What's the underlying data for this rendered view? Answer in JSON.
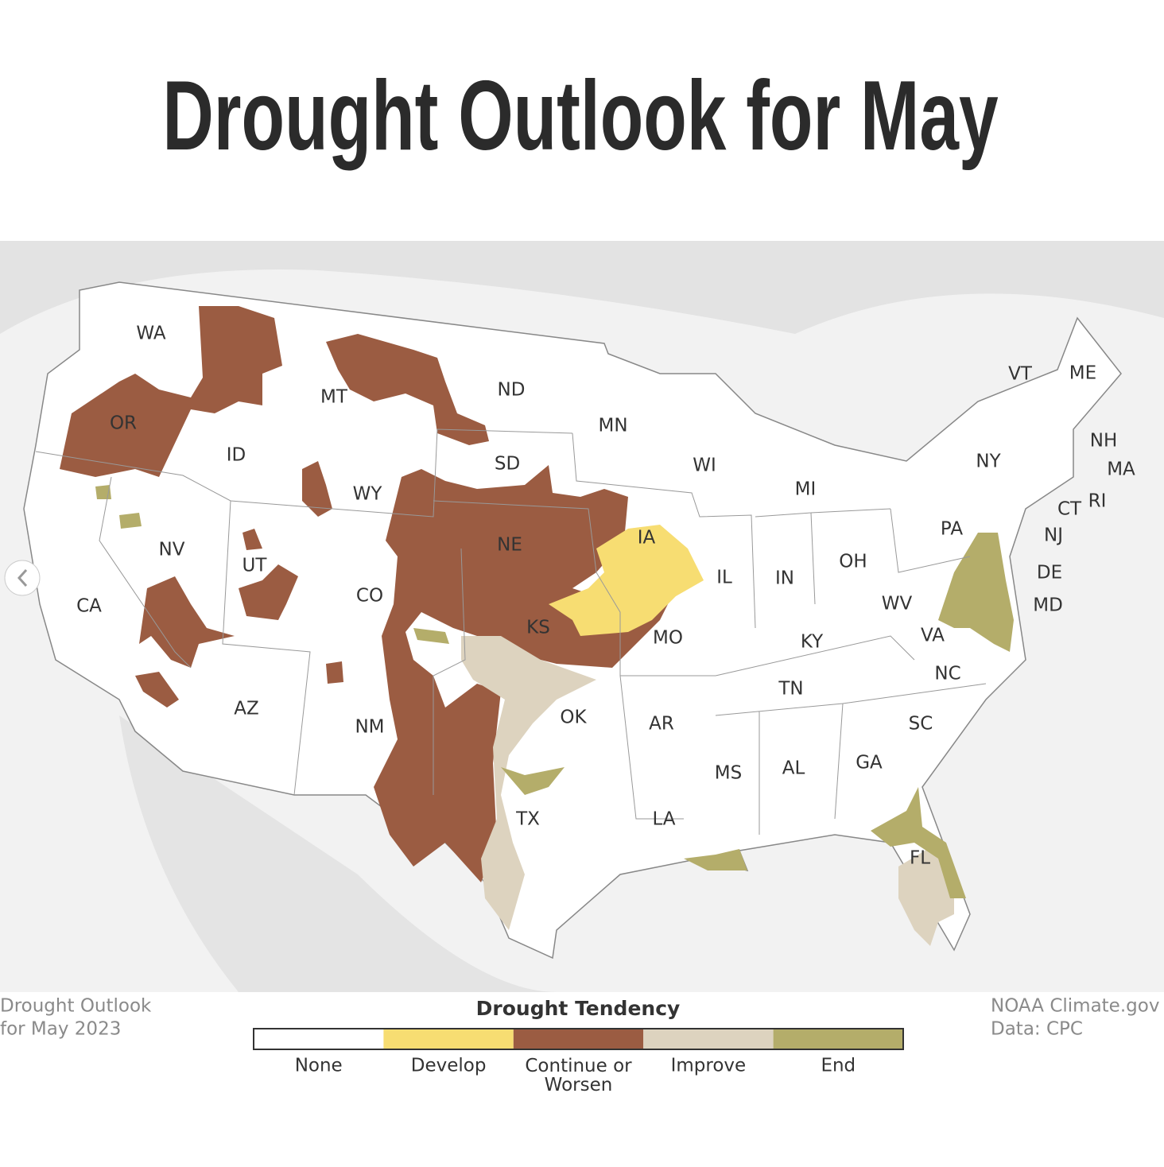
{
  "header": {
    "title": "Drought Outlook for May"
  },
  "map": {
    "labels": [
      "WA",
      "OR",
      "CA",
      "ID",
      "NV",
      "MT",
      "WY",
      "UT",
      "AZ",
      "CO",
      "NM",
      "ND",
      "SD",
      "NE",
      "KS",
      "OK",
      "TX",
      "MN",
      "IA",
      "MO",
      "AR",
      "LA",
      "WI",
      "IL",
      "MI",
      "IN",
      "OH",
      "KY",
      "TN",
      "MS",
      "AL",
      "GA",
      "SC",
      "NC",
      "VA",
      "WV",
      "PA",
      "NY",
      "VT",
      "ME",
      "NH",
      "MA",
      "RI",
      "CT",
      "NJ",
      "DE",
      "MD",
      "FL"
    ]
  },
  "legend": {
    "title": "Drought Tendency",
    "items": [
      {
        "label": "None",
        "color": "#ffffff"
      },
      {
        "label": "Develop",
        "color": "#f7dd72"
      },
      {
        "label": "Continue or Worsen",
        "color": "#9b5c42"
      },
      {
        "label": "Improve",
        "color": "#ddd3bf"
      },
      {
        "label": "End",
        "color": "#b4ad6a"
      }
    ]
  },
  "credits": {
    "left": [
      "Drought Outlook",
      "for May 2023"
    ],
    "right": [
      "NOAA Climate.gov",
      "Data: CPC"
    ]
  }
}
